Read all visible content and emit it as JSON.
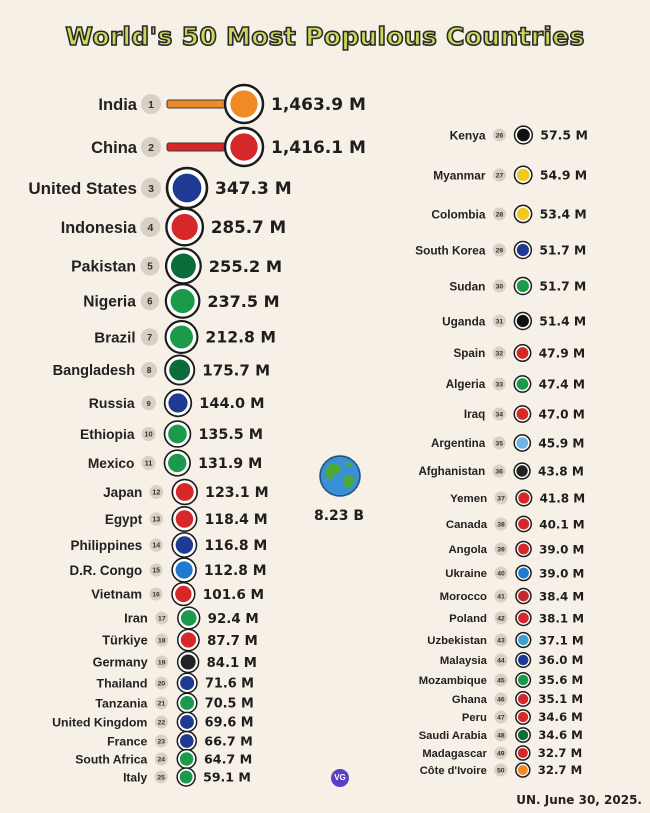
{
  "title": "World's 50 Most Populous Countries",
  "total": "8.23 B",
  "source": "UN. June 30, 2025.",
  "logo_text": "VG",
  "chart_data": {
    "type": "bar",
    "unit": "M",
    "categories": [
      "India",
      "China",
      "United States",
      "Indonesia",
      "Pakistan",
      "Nigeria",
      "Brazil",
      "Bangladesh",
      "Russia",
      "Ethiopia",
      "Mexico",
      "Japan",
      "Egypt",
      "Philippines",
      "D.R. Congo",
      "Vietnam",
      "Iran",
      "Türkiye",
      "Germany",
      "Thailand",
      "Tanzania",
      "United Kingdom",
      "France",
      "South Africa",
      "Italy",
      "Kenya",
      "Myanmar",
      "Colombia",
      "South Korea",
      "Sudan",
      "Uganda",
      "Spain",
      "Algeria",
      "Iraq",
      "Argentina",
      "Afghanistan",
      "Yemen",
      "Canada",
      "Angola",
      "Ukraine",
      "Morocco",
      "Poland",
      "Uzbekistan",
      "Malaysia",
      "Mozambique",
      "Ghana",
      "Peru",
      "Saudi Arabia",
      "Madagascar",
      "Côte d'Ivoire"
    ],
    "values": [
      1463.9,
      1416.1,
      347.3,
      285.7,
      255.2,
      237.5,
      212.8,
      175.7,
      144.0,
      135.5,
      131.9,
      123.1,
      118.4,
      116.8,
      112.8,
      101.6,
      92.4,
      87.7,
      84.1,
      71.6,
      70.5,
      69.6,
      66.7,
      64.7,
      59.1,
      57.5,
      54.9,
      53.4,
      51.7,
      51.7,
      51.4,
      47.9,
      47.4,
      47.0,
      45.9,
      43.8,
      41.8,
      40.1,
      39.0,
      39.0,
      38.4,
      38.1,
      37.1,
      36.0,
      35.6,
      35.1,
      34.6,
      34.6,
      32.7,
      32.7
    ],
    "labels": [
      "1,463.9 M",
      "1,416.1 M",
      "347.3 M",
      "285.7 M",
      "255.2 M",
      "237.5 M",
      "212.8 M",
      "175.7 M",
      "144.0 M",
      "135.5 M",
      "131.9 M",
      "123.1 M",
      "118.4 M",
      "116.8 M",
      "112.8 M",
      "101.6 M",
      "92.4 M",
      "87.7 M",
      "84.1 M",
      "71.6 M",
      "70.5 M",
      "69.6 M",
      "66.7 M",
      "64.7 M",
      "59.1 M",
      "57.5 M",
      "54.9 M",
      "53.4 M",
      "51.7 M",
      "51.7 M",
      "51.4 M",
      "47.9 M",
      "47.4 M",
      "47.0 M",
      "45.9 M",
      "43.8 M",
      "41.8 M",
      "40.1 M",
      "39.0 M",
      "39.0 M",
      "38.4 M",
      "38.1 M",
      "37.1 M",
      "36.0 M",
      "35.6 M",
      "35.1 M",
      "34.6 M",
      "34.6 M",
      "32.7 M",
      "32.7 M"
    ],
    "ranks": [
      "1",
      "2",
      "3",
      "4",
      "5",
      "6",
      "7",
      "8",
      "9",
      "10",
      "11",
      "12",
      "13",
      "14",
      "15",
      "16",
      "17",
      "18",
      "19",
      "20",
      "21",
      "22",
      "23",
      "24",
      "25",
      "26",
      "27",
      "28",
      "29",
      "30",
      "31",
      "32",
      "33",
      "34",
      "35",
      "36",
      "37",
      "38",
      "39",
      "40",
      "41",
      "42",
      "43",
      "44",
      "45",
      "46",
      "47",
      "48",
      "49",
      "50"
    ],
    "colors": [
      "#f08a24",
      "#d62828",
      "#1f3a93",
      "#d62828",
      "#0b6b3a",
      "#1a9a4a",
      "#1a9a4a",
      "#0b6b3a",
      "#1f3a93",
      "#1a9a4a",
      "#1a9a4a",
      "#d62828",
      "#d62828",
      "#1f3a93",
      "#1f7ad1",
      "#d62828",
      "#1a9a4a",
      "#d62828",
      "#222222",
      "#1f3a93",
      "#1a9a4a",
      "#1f3a93",
      "#1f3a93",
      "#1a9a4a",
      "#1a9a4a",
      "#111111",
      "#f2c91c",
      "#f2c91c",
      "#1f3a93",
      "#1a9a4a",
      "#111111",
      "#d62828",
      "#1a9a4a",
      "#d62828",
      "#6fb3e8",
      "#222222",
      "#d62828",
      "#d62828",
      "#d62828",
      "#1f7ad1",
      "#c1272d",
      "#d62828",
      "#3aa1d0",
      "#1f3a93",
      "#1a9a4a",
      "#d62828",
      "#d62828",
      "#0b6b3a",
      "#d62828",
      "#f08a24"
    ],
    "columns": "two columns: ranks 1-25 left, 26-50 right"
  }
}
